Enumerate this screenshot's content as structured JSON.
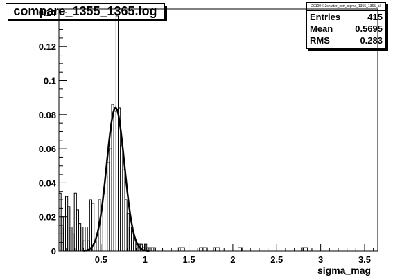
{
  "window": {
    "title": "compare_1355_1365.log"
  },
  "stats": {
    "name": "20100413shutter_corr_sigma_1355_1365_all",
    "rows": [
      {
        "label": "Entries",
        "value": "415"
      },
      {
        "label": "Mean",
        "value": "0.5695"
      },
      {
        "label": "RMS",
        "value": "0.283"
      }
    ]
  },
  "chart_data": {
    "type": "bar",
    "title": "compare_1355_1365.log",
    "xlabel": "sigma_mag",
    "ylabel": "",
    "xlim": [
      0.02,
      3.65
    ],
    "ylim": [
      0,
      0.142
    ],
    "grid": false,
    "legend": "none",
    "bin_width": 0.05,
    "x_ticks": [
      0.5,
      1,
      1.5,
      2,
      2.5,
      3,
      3.5
    ],
    "x_tick_labels": [
      "0.5",
      "1",
      "1.5",
      "2",
      "2.5",
      "3",
      "3.5"
    ],
    "y_ticks": [
      0,
      0.02,
      0.04,
      0.06,
      0.08,
      0.1,
      0.12,
      0.14
    ],
    "y_tick_labels": [
      "0",
      "0.02",
      "0.04",
      "0.06",
      "0.08",
      "0.1",
      "0.12",
      "0.14"
    ],
    "series": [
      {
        "type": "histogram",
        "x": [
          0.02,
          0.045,
          0.07,
          0.095,
          0.12,
          0.145,
          0.17,
          0.195,
          0.22,
          0.245,
          0.27,
          0.295,
          0.32,
          0.345,
          0.37,
          0.395,
          0.42,
          0.445,
          0.47,
          0.495,
          0.52,
          0.545,
          0.57,
          0.595,
          0.62,
          0.645,
          0.67,
          0.695,
          0.72,
          0.745,
          0.77,
          0.795,
          0.82,
          0.845,
          0.87,
          0.895,
          0.92,
          0.945,
          0.97,
          0.995,
          1.02,
          1.045,
          1.07
        ],
        "values": [
          0.034,
          0.02,
          0.014,
          0.032,
          0.026,
          0.014,
          0.01,
          0.034,
          0.024,
          0.016,
          0.014,
          0.006,
          0.014,
          0.006,
          0.03,
          0.028,
          0.006,
          0.01,
          0.03,
          0.024,
          0.034,
          0.044,
          0.052,
          0.06,
          0.086,
          0.082,
          0.138,
          0.084,
          0.062,
          0.048,
          0.03,
          0.022,
          0.014,
          0.01,
          0.006,
          0.004,
          0.004,
          0.004,
          0.002,
          0.004,
          0.002,
          0.002,
          0.002
        ]
      },
      {
        "type": "histogram",
        "name": "",
        "x": [
          1.38,
          1.4,
          1.62,
          1.66,
          1.78,
          1.8,
          2.06,
          2.78,
          2.8
        ],
        "values": [
          0.002,
          0.002,
          0.002,
          0.002,
          0.002,
          0.002,
          0.002,
          0.002,
          0.002
        ]
      },
      {
        "type": "gaussian-fit",
        "mean": 0.665,
        "sigma": 0.101,
        "amplitude": 0.084
      }
    ]
  }
}
